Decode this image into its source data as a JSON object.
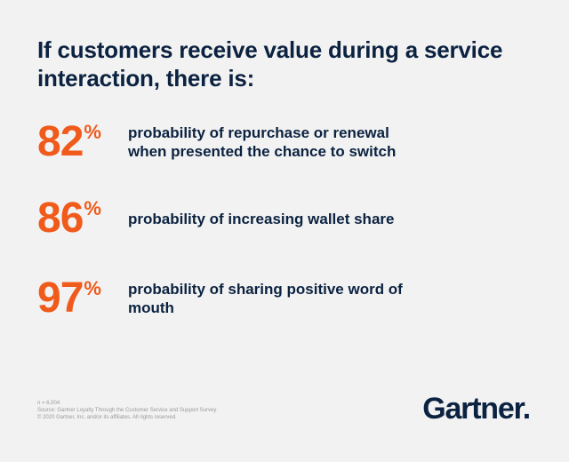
{
  "headline": "If customers receive value during a service interaction, there is:",
  "stats": [
    {
      "number": "82",
      "percent": "%",
      "description": "probability of repurchase or renewal when presented the chance to switch"
    },
    {
      "number": "86",
      "percent": "%",
      "description": "probability of increasing wallet share"
    },
    {
      "number": "97",
      "percent": "%",
      "description": "probability of sharing positive word of mouth"
    }
  ],
  "footnote": {
    "sample": "n = 6,004",
    "source": "Source: Gartner Loyalty Through the Customer Service and Support Survey",
    "copyright": "© 2020 Gartner, Inc. and/or its affiliates. All rights reserved."
  },
  "logo": {
    "text": "Gartner",
    "dot": "."
  },
  "colors": {
    "background": "#f2f2f2",
    "navy": "#0b2240",
    "orange": "#f05a1a"
  }
}
